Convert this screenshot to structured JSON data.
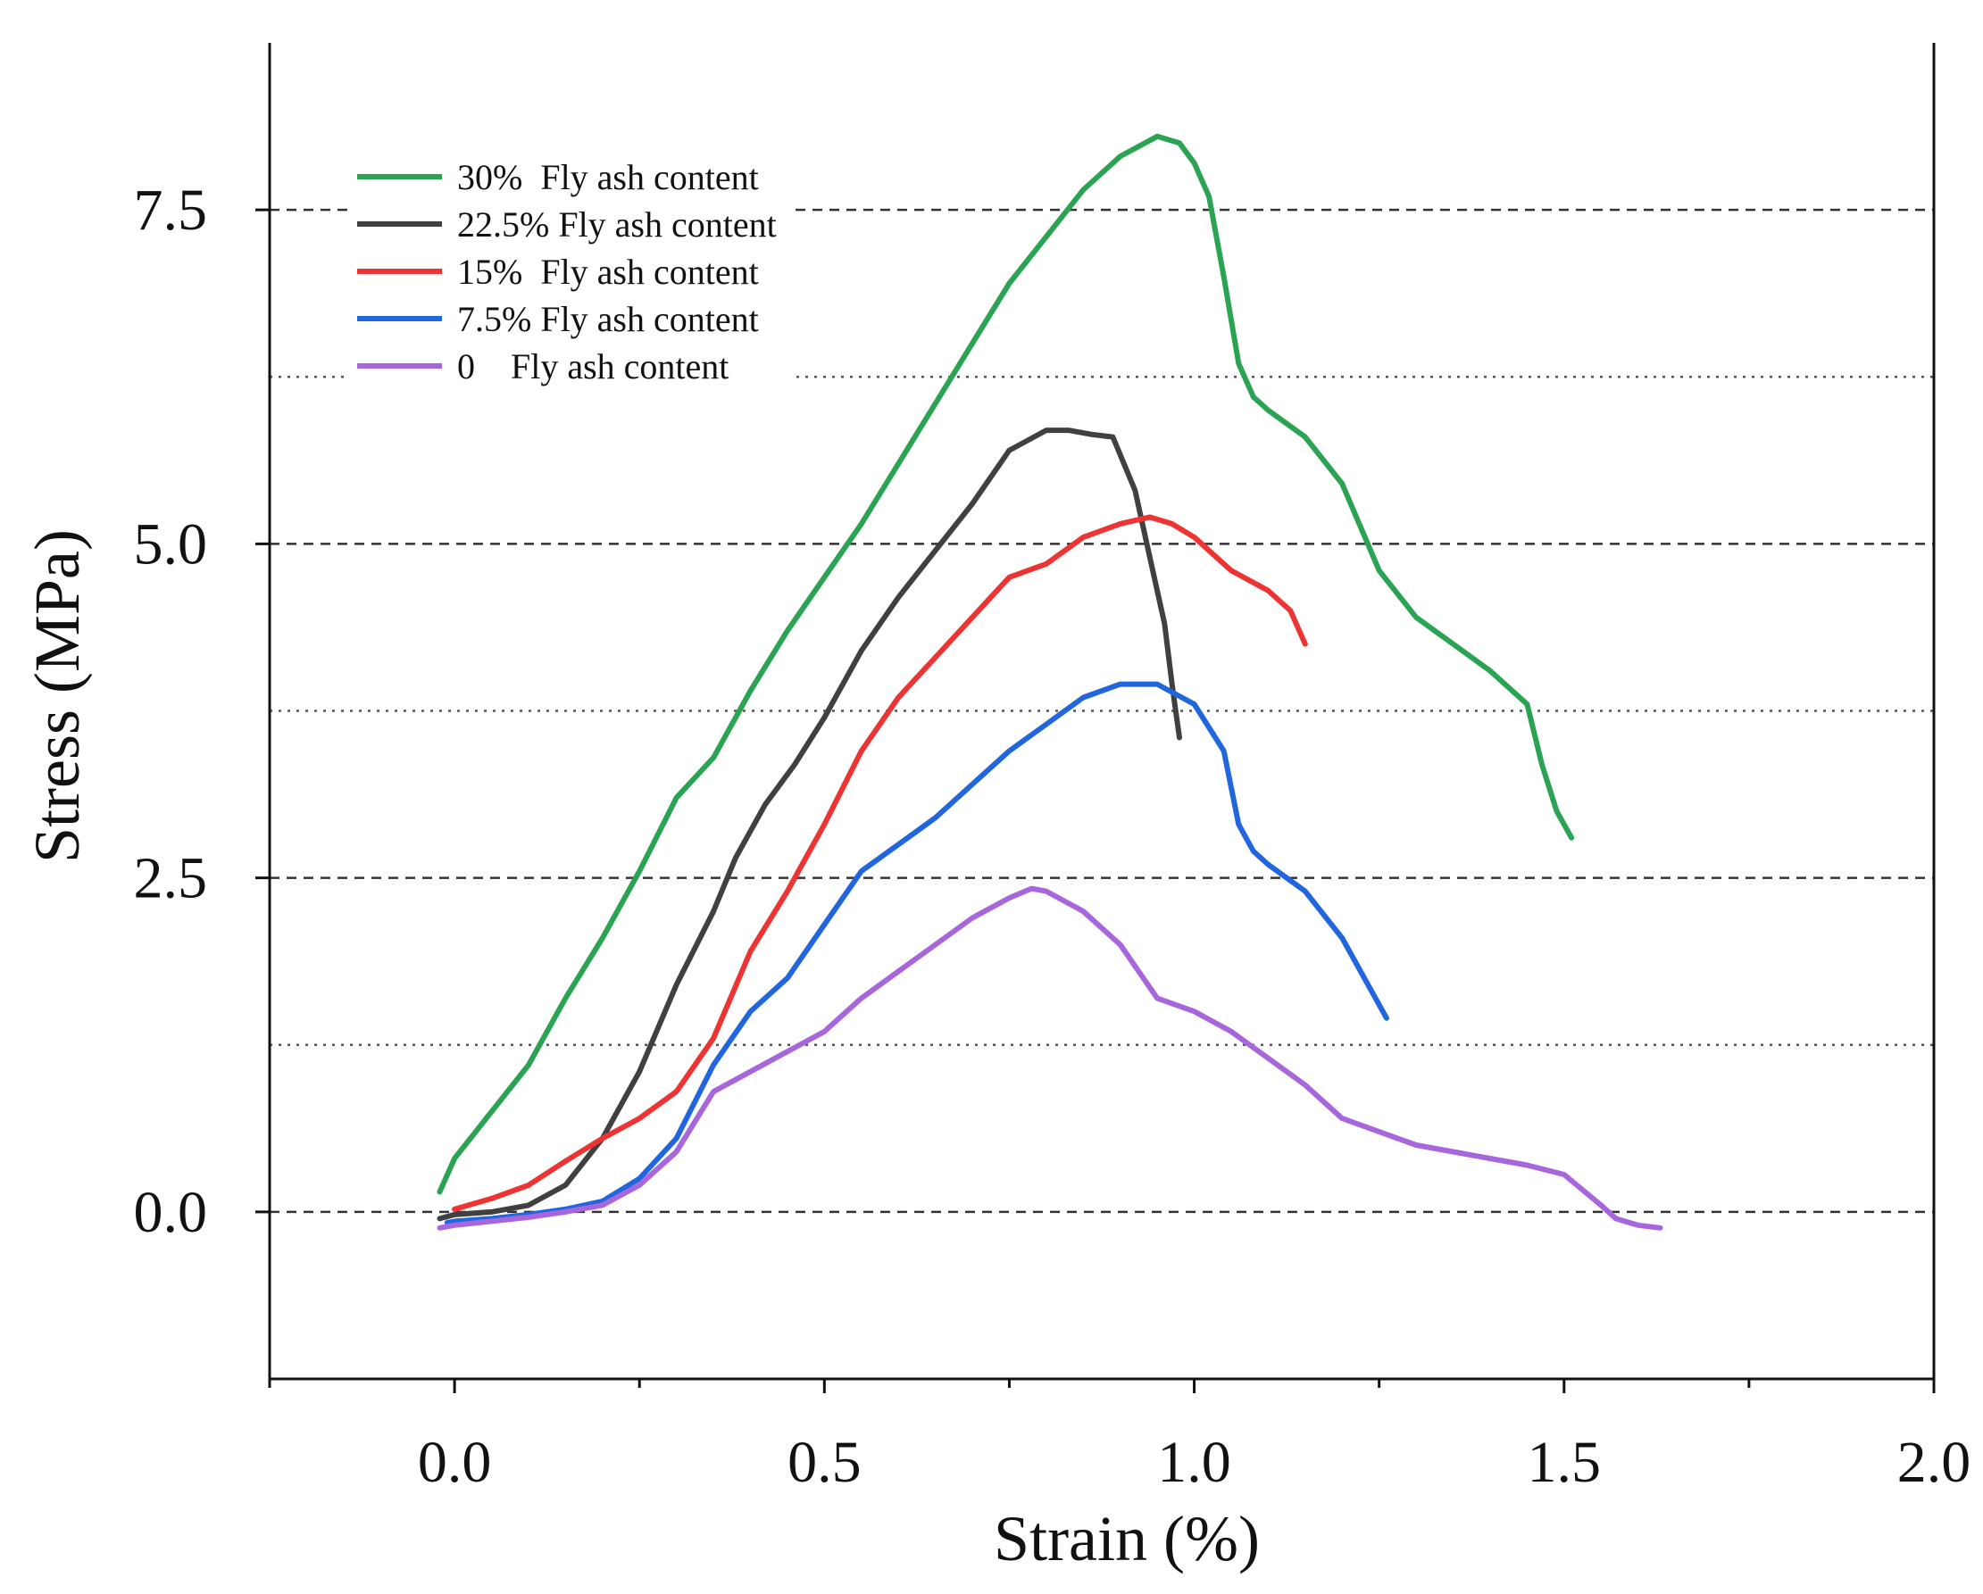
{
  "chart_data": {
    "type": "line",
    "title": "",
    "xlabel": "Strain (%)",
    "ylabel": "Stress (MPa)",
    "xlim": [
      -0.25,
      2.0
    ],
    "ylim": [
      -1.25,
      8.75
    ],
    "x_ticks": [
      0.0,
      0.5,
      1.0,
      1.5,
      2.0
    ],
    "x_tick_labels": [
      "0.0",
      "0.5",
      "1.0",
      "1.5",
      "2.0"
    ],
    "y_ticks": [
      0.0,
      2.5,
      5.0,
      7.5
    ],
    "y_tick_labels": [
      "0.0",
      "2.5",
      "5.0",
      "7.5"
    ],
    "y_dashed_gridlines": [
      0.0,
      2.5,
      5.0,
      7.5
    ],
    "y_dotted_gridlines": [
      1.25,
      3.75,
      6.25
    ],
    "legend_position": "top-left",
    "series": [
      {
        "name": "30%  Fly ash content",
        "color": "#2aa352",
        "x": [
          -0.02,
          0.0,
          0.05,
          0.1,
          0.15,
          0.2,
          0.25,
          0.3,
          0.35,
          0.4,
          0.45,
          0.5,
          0.55,
          0.6,
          0.65,
          0.7,
          0.75,
          0.8,
          0.85,
          0.9,
          0.95,
          0.98,
          1.0,
          1.02,
          1.04,
          1.06,
          1.08,
          1.1,
          1.15,
          1.2,
          1.25,
          1.3,
          1.35,
          1.4,
          1.45,
          1.47,
          1.49,
          1.51
        ],
        "y": [
          0.15,
          0.4,
          0.75,
          1.1,
          1.6,
          2.05,
          2.55,
          3.1,
          3.4,
          3.9,
          4.35,
          4.75,
          5.15,
          5.6,
          6.05,
          6.5,
          6.95,
          7.3,
          7.65,
          7.9,
          8.05,
          8.0,
          7.85,
          7.6,
          7.0,
          6.35,
          6.1,
          6.0,
          5.8,
          5.45,
          4.8,
          4.45,
          4.25,
          4.05,
          3.8,
          3.35,
          3.0,
          2.8
        ]
      },
      {
        "name": "22.5% Fly ash content",
        "color": "#404040",
        "x": [
          -0.02,
          0.0,
          0.05,
          0.1,
          0.15,
          0.2,
          0.25,
          0.3,
          0.35,
          0.38,
          0.42,
          0.46,
          0.5,
          0.55,
          0.6,
          0.65,
          0.7,
          0.75,
          0.8,
          0.83,
          0.86,
          0.89,
          0.92,
          0.94,
          0.96,
          0.97,
          0.975,
          0.98
        ],
        "y": [
          -0.05,
          -0.02,
          0.0,
          0.05,
          0.2,
          0.55,
          1.05,
          1.7,
          2.25,
          2.65,
          3.05,
          3.35,
          3.7,
          4.2,
          4.6,
          4.95,
          5.3,
          5.7,
          5.85,
          5.85,
          5.82,
          5.8,
          5.4,
          4.9,
          4.4,
          3.95,
          3.75,
          3.55
        ]
      },
      {
        "name": "15%  Fly ash content",
        "color": "#ee3333",
        "x": [
          0.0,
          0.05,
          0.1,
          0.15,
          0.2,
          0.25,
          0.3,
          0.35,
          0.4,
          0.45,
          0.5,
          0.55,
          0.6,
          0.65,
          0.7,
          0.75,
          0.8,
          0.85,
          0.9,
          0.94,
          0.97,
          1.0,
          1.02,
          1.05,
          1.1,
          1.13,
          1.15
        ],
        "y": [
          0.02,
          0.1,
          0.2,
          0.38,
          0.55,
          0.7,
          0.9,
          1.3,
          1.95,
          2.4,
          2.9,
          3.45,
          3.85,
          4.15,
          4.45,
          4.75,
          4.85,
          5.05,
          5.15,
          5.2,
          5.15,
          5.05,
          4.95,
          4.8,
          4.65,
          4.5,
          4.25
        ]
      },
      {
        "name": "7.5% Fly ash content",
        "color": "#2266dd",
        "x": [
          -0.01,
          0.0,
          0.05,
          0.1,
          0.15,
          0.2,
          0.25,
          0.3,
          0.35,
          0.4,
          0.45,
          0.5,
          0.55,
          0.6,
          0.65,
          0.7,
          0.75,
          0.8,
          0.85,
          0.9,
          0.95,
          1.0,
          1.04,
          1.06,
          1.08,
          1.1,
          1.15,
          1.2,
          1.23,
          1.26
        ],
        "y": [
          -0.08,
          -0.07,
          -0.05,
          -0.02,
          0.02,
          0.08,
          0.25,
          0.55,
          1.1,
          1.5,
          1.75,
          2.15,
          2.55,
          2.75,
          2.95,
          3.2,
          3.45,
          3.65,
          3.85,
          3.95,
          3.95,
          3.8,
          3.45,
          2.9,
          2.7,
          2.6,
          2.4,
          2.05,
          1.75,
          1.45
        ]
      },
      {
        "name": "0    Fly ash content",
        "color": "#a866dd",
        "x": [
          -0.02,
          0.0,
          0.05,
          0.1,
          0.15,
          0.2,
          0.25,
          0.3,
          0.35,
          0.4,
          0.45,
          0.5,
          0.55,
          0.6,
          0.65,
          0.7,
          0.75,
          0.78,
          0.8,
          0.85,
          0.9,
          0.95,
          1.0,
          1.05,
          1.1,
          1.15,
          1.2,
          1.25,
          1.3,
          1.35,
          1.4,
          1.45,
          1.5,
          1.55,
          1.57,
          1.6,
          1.63
        ],
        "y": [
          -0.12,
          -0.1,
          -0.07,
          -0.04,
          0.0,
          0.05,
          0.2,
          0.45,
          0.9,
          1.05,
          1.2,
          1.35,
          1.6,
          1.8,
          2.0,
          2.2,
          2.35,
          2.42,
          2.4,
          2.25,
          2.0,
          1.6,
          1.5,
          1.35,
          1.15,
          0.95,
          0.7,
          0.6,
          0.5,
          0.45,
          0.4,
          0.35,
          0.28,
          0.05,
          -0.05,
          -0.1,
          -0.12
        ]
      }
    ]
  }
}
